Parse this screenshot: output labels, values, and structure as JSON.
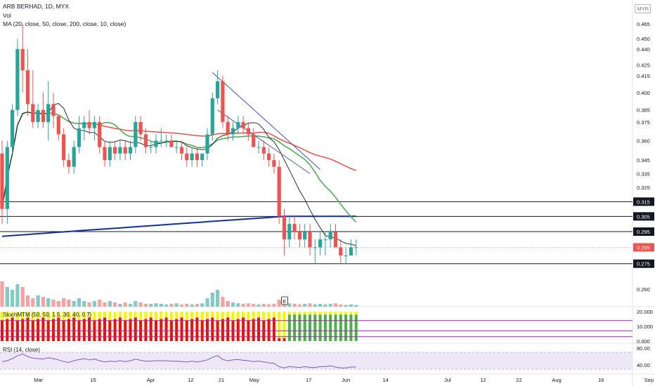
{
  "header": {
    "symbol_line": "ARB BERHAD, 1D, MYX",
    "vol_label": "Vol",
    "ma_label": "MA (20, close, 50, close, 200, close, 10, close)",
    "currency": "MYR"
  },
  "colors": {
    "up": "#26a69a",
    "down": "#ef5350",
    "vol_up": "#80cbc4",
    "vol_down": "#f7a1a0",
    "ma10": "#131722",
    "ma20": "#4caf50",
    "ma50": "#f44336",
    "ma200": "#0c3299",
    "hline": "#131722",
    "trend": "#3f51b5",
    "rsi_line": "#7e57c2",
    "rsi_band": "#ede7f6",
    "stoch_red": "#f20d0d",
    "stoch_yellow": "#f5f500",
    "stoch_green": "#4caf50",
    "stoch_level": "#9c27b0"
  },
  "chart_data": {
    "type": "candlestick",
    "price_axis": {
      "ticks": [
        0.26,
        0.275,
        0.285,
        0.295,
        0.305,
        0.315,
        0.325,
        0.335,
        0.345,
        0.36,
        0.375,
        0.385,
        0.4,
        0.415,
        0.425,
        0.44,
        0.45,
        0.465
      ],
      "tick_labels": [
        "0.260",
        "0.275",
        "0.285",
        "0.295",
        "0.305",
        "0.315",
        "0.325",
        "0.335",
        "0.345",
        "0.360",
        "0.375",
        "0.385",
        "0.400",
        "0.415",
        "0.425",
        "0.440",
        "0.450",
        "0.465"
      ],
      "scale": "log"
    },
    "x_axis": {
      "labels": [
        "Mar",
        "15",
        "Apr",
        "12",
        "21",
        "May",
        "17",
        "Jun",
        "14",
        "Jul",
        "12",
        "22",
        "Aug",
        "16",
        "Sep"
      ],
      "label_index": [
        7,
        18,
        29,
        37,
        43,
        49,
        60,
        67,
        75,
        87,
        94,
        101,
        108,
        117,
        126
      ]
    },
    "horizontal_lines": [
      {
        "price": 0.315,
        "label": "0.315"
      },
      {
        "price": 0.305,
        "label": "0.305"
      },
      {
        "price": 0.295,
        "label": "0.295"
      },
      {
        "price": 0.275,
        "label": "0.275"
      }
    ],
    "last_price": {
      "price": 0.285,
      "label": "0.285"
    },
    "candles": [
      [
        0.35,
        0.36,
        0.3,
        0.31
      ],
      [
        0.31,
        0.36,
        0.3,
        0.355
      ],
      [
        0.355,
        0.39,
        0.35,
        0.385
      ],
      [
        0.385,
        0.45,
        0.38,
        0.44
      ],
      [
        0.44,
        0.465,
        0.4,
        0.42
      ],
      [
        0.42,
        0.44,
        0.38,
        0.39
      ],
      [
        0.39,
        0.42,
        0.37,
        0.375
      ],
      [
        0.375,
        0.39,
        0.37,
        0.385
      ],
      [
        0.385,
        0.4,
        0.37,
        0.375
      ],
      [
        0.375,
        0.41,
        0.36,
        0.39
      ],
      [
        0.39,
        0.4,
        0.37,
        0.38
      ],
      [
        0.38,
        0.38,
        0.36,
        0.365
      ],
      [
        0.365,
        0.37,
        0.34,
        0.345
      ],
      [
        0.345,
        0.35,
        0.335,
        0.34
      ],
      [
        0.34,
        0.36,
        0.335,
        0.355
      ],
      [
        0.355,
        0.38,
        0.35,
        0.37
      ],
      [
        0.37,
        0.38,
        0.36,
        0.375
      ],
      [
        0.375,
        0.385,
        0.365,
        0.37
      ],
      [
        0.37,
        0.38,
        0.36,
        0.375
      ],
      [
        0.375,
        0.38,
        0.35,
        0.355
      ],
      [
        0.355,
        0.36,
        0.34,
        0.345
      ],
      [
        0.345,
        0.36,
        0.34,
        0.355
      ],
      [
        0.355,
        0.36,
        0.345,
        0.35
      ],
      [
        0.35,
        0.36,
        0.345,
        0.355
      ],
      [
        0.355,
        0.36,
        0.345,
        0.35
      ],
      [
        0.35,
        0.36,
        0.345,
        0.355
      ],
      [
        0.355,
        0.38,
        0.35,
        0.375
      ],
      [
        0.375,
        0.38,
        0.36,
        0.365
      ],
      [
        0.365,
        0.37,
        0.35,
        0.355
      ],
      [
        0.355,
        0.36,
        0.35,
        0.355
      ],
      [
        0.355,
        0.365,
        0.35,
        0.36
      ],
      [
        0.36,
        0.37,
        0.355,
        0.36
      ],
      [
        0.36,
        0.365,
        0.355,
        0.36
      ],
      [
        0.36,
        0.365,
        0.355,
        0.355
      ],
      [
        0.355,
        0.36,
        0.35,
        0.355
      ],
      [
        0.355,
        0.36,
        0.345,
        0.35
      ],
      [
        0.35,
        0.355,
        0.34,
        0.345
      ],
      [
        0.345,
        0.355,
        0.34,
        0.35
      ],
      [
        0.35,
        0.355,
        0.34,
        0.345
      ],
      [
        0.345,
        0.35,
        0.34,
        0.35
      ],
      [
        0.35,
        0.37,
        0.345,
        0.365
      ],
      [
        0.365,
        0.4,
        0.36,
        0.395
      ],
      [
        0.395,
        0.42,
        0.39,
        0.41
      ],
      [
        0.41,
        0.415,
        0.37,
        0.375
      ],
      [
        0.375,
        0.38,
        0.36,
        0.365
      ],
      [
        0.365,
        0.375,
        0.36,
        0.37
      ],
      [
        0.37,
        0.38,
        0.365,
        0.375
      ],
      [
        0.375,
        0.38,
        0.365,
        0.37
      ],
      [
        0.37,
        0.375,
        0.36,
        0.365
      ],
      [
        0.365,
        0.37,
        0.355,
        0.355
      ],
      [
        0.355,
        0.36,
        0.35,
        0.355
      ],
      [
        0.355,
        0.36,
        0.345,
        0.35
      ],
      [
        0.35,
        0.355,
        0.34,
        0.345
      ],
      [
        0.345,
        0.35,
        0.335,
        0.34
      ],
      [
        0.34,
        0.345,
        0.3,
        0.305
      ],
      [
        0.305,
        0.31,
        0.28,
        0.29
      ],
      [
        0.29,
        0.305,
        0.285,
        0.3
      ],
      [
        0.3,
        0.305,
        0.29,
        0.295
      ],
      [
        0.295,
        0.3,
        0.285,
        0.29
      ],
      [
        0.29,
        0.3,
        0.285,
        0.295
      ],
      [
        0.295,
        0.3,
        0.28,
        0.285
      ],
      [
        0.285,
        0.29,
        0.275,
        0.285
      ],
      [
        0.285,
        0.295,
        0.28,
        0.29
      ],
      [
        0.29,
        0.295,
        0.28,
        0.29
      ],
      [
        0.29,
        0.3,
        0.285,
        0.295
      ],
      [
        0.295,
        0.3,
        0.285,
        0.285
      ],
      [
        0.285,
        0.29,
        0.275,
        0.28
      ],
      [
        0.28,
        0.285,
        0.275,
        0.28
      ],
      [
        0.28,
        0.29,
        0.28,
        0.285
      ],
      [
        0.285,
        0.29,
        0.28,
        0.285
      ]
    ],
    "volume": [
      0.9,
      0.7,
      0.6,
      0.8,
      0.7,
      0.4,
      0.3,
      0.4,
      0.35,
      0.3,
      0.25,
      0.2,
      0.3,
      0.25,
      0.2,
      0.3,
      0.2,
      0.15,
      0.2,
      0.25,
      0.15,
      0.2,
      0.15,
      0.1,
      0.15,
      0.1,
      0.2,
      0.15,
      0.1,
      0.1,
      0.12,
      0.1,
      0.08,
      0.1,
      0.12,
      0.08,
      0.1,
      0.08,
      0.1,
      0.12,
      0.3,
      0.5,
      0.6,
      0.35,
      0.2,
      0.15,
      0.12,
      0.1,
      0.12,
      0.1,
      0.08,
      0.1,
      0.08,
      0.1,
      0.25,
      0.15,
      0.12,
      0.1,
      0.08,
      0.1,
      0.12,
      0.08,
      0.1,
      0.08,
      0.1,
      0.12,
      0.08,
      0.06,
      0.08,
      0.06
    ],
    "earnings_marker": {
      "index": 55,
      "label": "E"
    },
    "stoch_panel": {
      "title": "StochMTM (50, 50, 1.5, 30, 40, 0.7)",
      "axis_ticks": [
        20.0,
        10.0,
        0.0
      ],
      "axis_labels": [
        "20.000",
        "10.000",
        "0.000"
      ],
      "levels": [
        14,
        7,
        3
      ]
    },
    "rsi_panel": {
      "title": "RSI (14, close)",
      "axis_ticks": [
        80,
        40
      ],
      "axis_labels": [
        "80.00",
        "40.00"
      ],
      "band": [
        70,
        30
      ],
      "values": [
        48,
        50,
        55,
        62,
        66,
        60,
        56,
        55,
        54,
        57,
        55,
        52,
        48,
        46,
        50,
        53,
        55,
        52,
        54,
        50,
        47,
        49,
        48,
        50,
        48,
        50,
        54,
        51,
        49,
        49,
        50,
        50,
        50,
        49,
        49,
        48,
        47,
        49,
        47,
        49,
        52,
        58,
        62,
        53,
        50,
        52,
        53,
        51,
        50,
        48,
        49,
        47,
        45,
        44,
        36,
        33,
        36,
        35,
        34,
        36,
        34,
        34,
        36,
        36,
        38,
        35,
        33,
        33,
        35,
        35
      ]
    }
  }
}
